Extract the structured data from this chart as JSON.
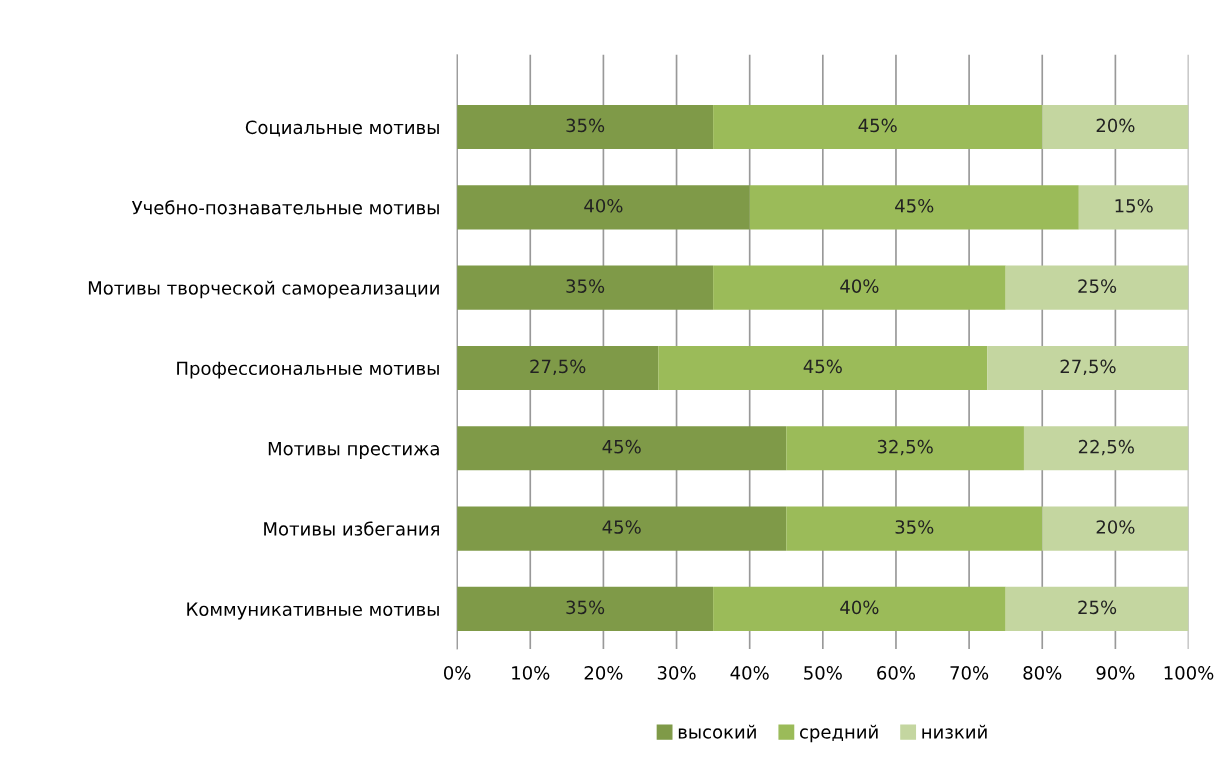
{
  "chart_data": {
    "type": "bar",
    "orientation": "horizontal",
    "stacked": true,
    "categories": [
      "Социальные мотивы",
      "Учебно-познавательные мотивы",
      "Мотивы творческой самореализации",
      "Профессиональные мотивы",
      "Мотивы престижа",
      "Мотивы избегания",
      "Коммуникативные мотивы"
    ],
    "series": [
      {
        "name": "высокий",
        "color": "#7f9a48",
        "values": [
          35,
          40,
          35,
          27.5,
          45,
          45,
          35
        ],
        "value_labels": [
          "35%",
          "40%",
          "35%",
          "27,5%",
          "45%",
          "45%",
          "35%"
        ]
      },
      {
        "name": "средний",
        "color": "#9bbb59",
        "values": [
          45,
          45,
          40,
          45,
          32.5,
          35,
          40
        ],
        "value_labels": [
          "45%",
          "45%",
          "40%",
          "45%",
          "32,5%",
          "35%",
          "40%"
        ]
      },
      {
        "name": "низкий",
        "color": "#c4d6a0",
        "values": [
          20,
          15,
          25,
          27.5,
          22.5,
          20,
          25
        ],
        "value_labels": [
          "20%",
          "15%",
          "25%",
          "27,5%",
          "22,5%",
          "20%",
          "25%"
        ]
      }
    ],
    "xlim": [
      0,
      100
    ],
    "xticks": [
      {
        "value": 0,
        "label": "0%"
      },
      {
        "value": 10,
        "label": "10%"
      },
      {
        "value": 20,
        "label": "20%"
      },
      {
        "value": 30,
        "label": "30%"
      },
      {
        "value": 40,
        "label": "40%"
      },
      {
        "value": 50,
        "label": "50%"
      },
      {
        "value": 60,
        "label": "60%"
      },
      {
        "value": 70,
        "label": "70%"
      },
      {
        "value": 80,
        "label": "80%"
      },
      {
        "value": 90,
        "label": "90%"
      },
      {
        "value": 100,
        "label": "100%"
      }
    ],
    "grid": "x",
    "legend": "bottom"
  }
}
